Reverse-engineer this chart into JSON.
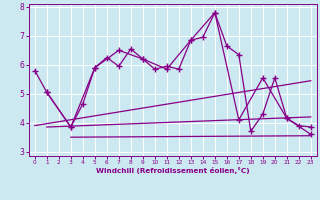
{
  "xlabel": "Windchill (Refroidissement éolien,°C)",
  "background_color": "#cce8f0",
  "grid_color": "#ffffff",
  "line_color": "#880088",
  "xlim": [
    -0.5,
    23.5
  ],
  "ylim": [
    2.85,
    8.1
  ],
  "yticks": [
    3,
    4,
    5,
    6,
    7,
    8
  ],
  "xticks": [
    0,
    1,
    2,
    3,
    4,
    5,
    6,
    7,
    8,
    9,
    10,
    11,
    12,
    13,
    14,
    15,
    16,
    17,
    18,
    19,
    20,
    21,
    22,
    23
  ],
  "series1_x": [
    0,
    1,
    3,
    4,
    5,
    6,
    7,
    8,
    9,
    10,
    11,
    12,
    13,
    14,
    15,
    16,
    17,
    18,
    19,
    20,
    21,
    22,
    23
  ],
  "series1_y": [
    5.8,
    5.05,
    3.85,
    4.65,
    5.9,
    6.25,
    5.95,
    6.55,
    6.2,
    5.85,
    5.95,
    5.85,
    6.85,
    6.95,
    7.8,
    6.65,
    6.35,
    3.7,
    4.3,
    5.55,
    4.15,
    3.9,
    3.85
  ],
  "series2_x": [
    1,
    3,
    5,
    7,
    9,
    11,
    13,
    15,
    17,
    19,
    21,
    23
  ],
  "series2_y": [
    5.05,
    3.85,
    5.9,
    6.5,
    6.2,
    5.85,
    6.85,
    7.8,
    4.1,
    5.55,
    4.15,
    3.6
  ],
  "series3_x": [
    3,
    23
  ],
  "series3_y": [
    3.5,
    3.55
  ],
  "series4_x": [
    1,
    23
  ],
  "series4_y": [
    3.85,
    4.2
  ],
  "series5_x": [
    0,
    23
  ],
  "series5_y": [
    3.9,
    5.45
  ],
  "figsize": [
    3.2,
    2.0
  ],
  "dpi": 100
}
